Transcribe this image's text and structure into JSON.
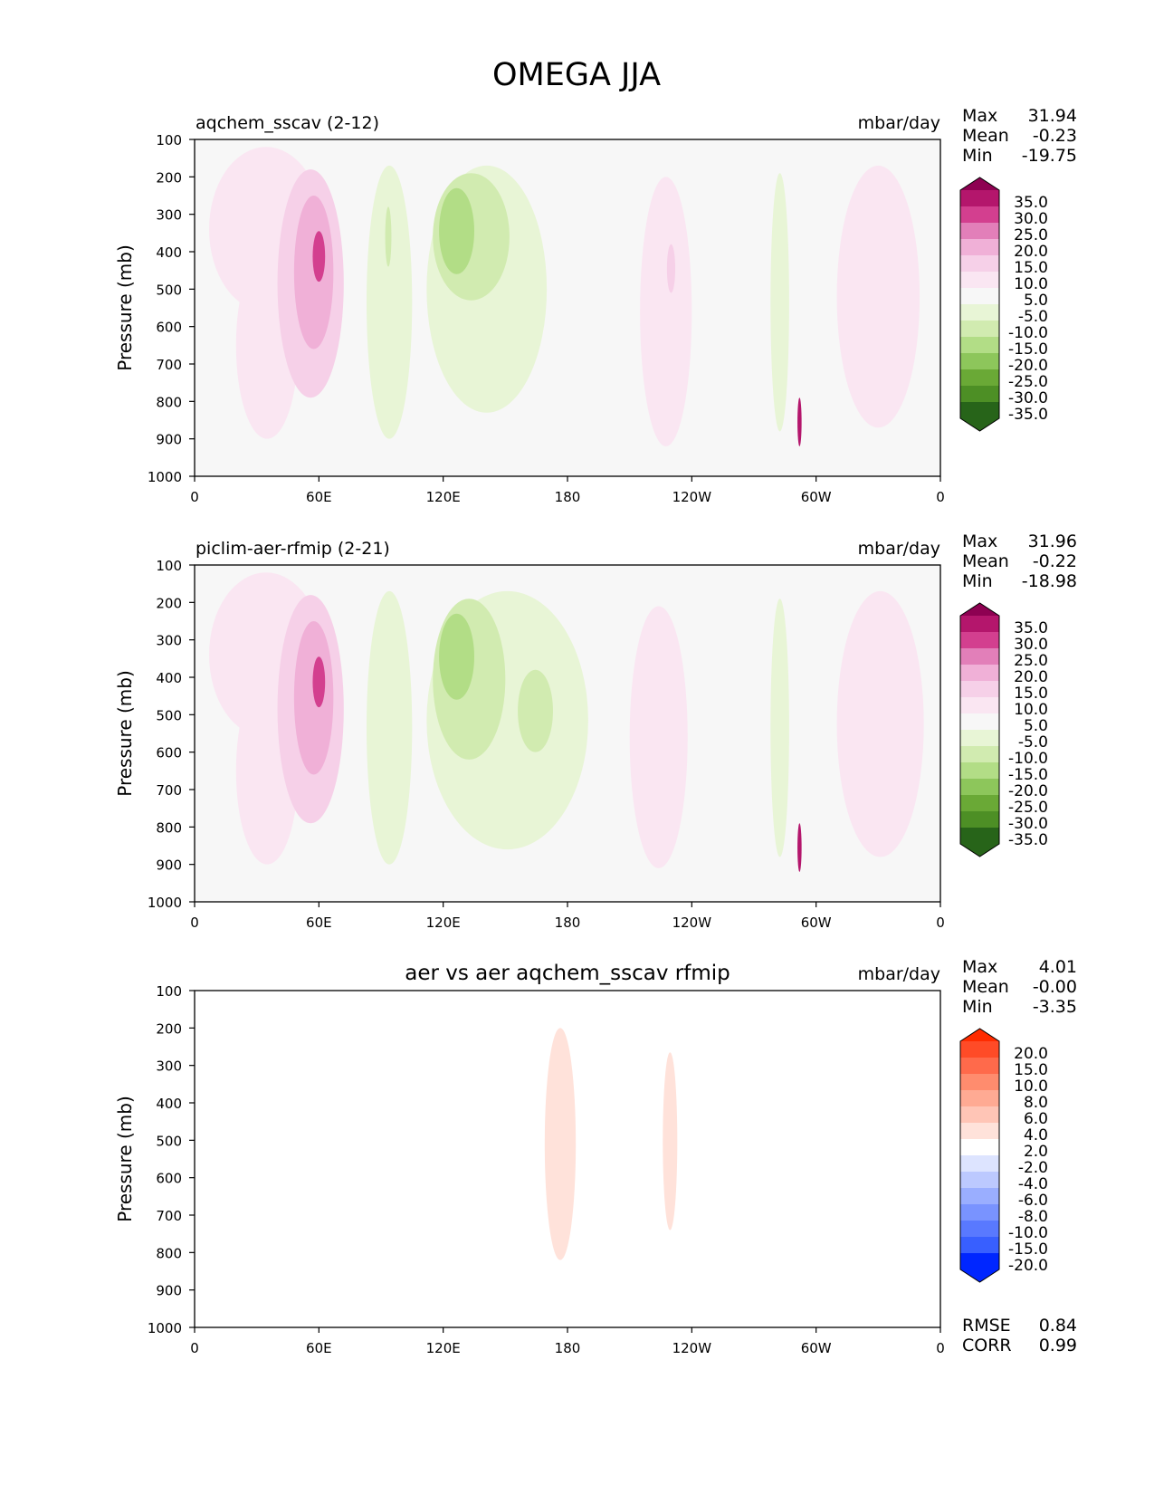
{
  "figure_title": "OMEGA JJA",
  "chart_data": [
    {
      "type": "heatmap",
      "title": "aqchem_sscav (2-12)",
      "units": "mbar/day",
      "ylabel": "Pressure (mb)",
      "xlabel": "",
      "x_ticks": [
        "0",
        "60E",
        "120E",
        "180",
        "120W",
        "60W",
        "0"
      ],
      "y_ticks": [
        "100",
        "200",
        "300",
        "400",
        "500",
        "600",
        "700",
        "800",
        "900",
        "1000"
      ],
      "xlim_deg": [
        0,
        360
      ],
      "ylim_mb": [
        100,
        1000
      ],
      "stats": [
        {
          "label": "Max",
          "value": "31.94"
        },
        {
          "label": "Mean",
          "value": "-0.23"
        },
        {
          "label": "Min",
          "value": "-19.75"
        }
      ],
      "colorbar": {
        "labels": [
          "35.0",
          "30.0",
          "25.0",
          "20.0",
          "15.0",
          "10.0",
          "5.0",
          "-5.0",
          "-10.0",
          "-15.0",
          "-20.0",
          "-25.0",
          "-30.0",
          "-35.0"
        ],
        "colors": [
          "#8e0152",
          "#b4166c",
          "#d33f8f",
          "#e27fb9",
          "#f0b0d7",
          "#f6d0e8",
          "#fae6f2",
          "#f7f7f7",
          "#e8f5d6",
          "#d1ebb0",
          "#b2dd86",
          "#8dc65b",
          "#6aa936",
          "#4d8f25",
          "#3a7a1e",
          "#276419"
        ]
      },
      "features": [
        {
          "lon": [
            7,
            62
          ],
          "p": [
            120,
            560
          ],
          "value": 7
        },
        {
          "lon": [
            20,
            50
          ],
          "p": [
            400,
            900
          ],
          "value": 6
        },
        {
          "lon": [
            40,
            72
          ],
          "p": [
            180,
            790
          ],
          "value": 14
        },
        {
          "lon": [
            48,
            67
          ],
          "p": [
            250,
            660
          ],
          "value": 19
        },
        {
          "lon": [
            57,
            63
          ],
          "p": [
            345,
            480
          ],
          "value": 26
        },
        {
          "lon": [
            83,
            105
          ],
          "p": [
            170,
            900
          ],
          "value": -8
        },
        {
          "lon": [
            92,
            95
          ],
          "p": [
            280,
            440
          ],
          "value": -12
        },
        {
          "lon": [
            112,
            170
          ],
          "p": [
            170,
            830
          ],
          "value": -8
        },
        {
          "lon": [
            115,
            152
          ],
          "p": [
            190,
            530
          ],
          "value": -14
        },
        {
          "lon": [
            118,
            135
          ],
          "p": [
            230,
            460
          ],
          "value": -18
        },
        {
          "lon": [
            215,
            240
          ],
          "p": [
            200,
            920
          ],
          "value": 7
        },
        {
          "lon": [
            228,
            232
          ],
          "p": [
            380,
            510
          ],
          "value": 13
        },
        {
          "lon": [
            278,
            287
          ],
          "p": [
            190,
            880
          ],
          "value": -8
        },
        {
          "lon": [
            291,
            293
          ],
          "p": [
            790,
            920
          ],
          "value": 30
        },
        {
          "lon": [
            310,
            350
          ],
          "p": [
            170,
            870
          ],
          "value": 6
        }
      ]
    },
    {
      "type": "heatmap",
      "title": "piclim-aer-rfmip (2-21)",
      "units": "mbar/day",
      "ylabel": "Pressure (mb)",
      "xlabel": "",
      "x_ticks": [
        "0",
        "60E",
        "120E",
        "180",
        "120W",
        "60W",
        "0"
      ],
      "y_ticks": [
        "100",
        "200",
        "300",
        "400",
        "500",
        "600",
        "700",
        "800",
        "900",
        "1000"
      ],
      "xlim_deg": [
        0,
        360
      ],
      "ylim_mb": [
        100,
        1000
      ],
      "stats": [
        {
          "label": "Max",
          "value": "31.96"
        },
        {
          "label": "Mean",
          "value": "-0.22"
        },
        {
          "label": "Min",
          "value": "-18.98"
        }
      ],
      "colorbar": {
        "labels": [
          "35.0",
          "30.0",
          "25.0",
          "20.0",
          "15.0",
          "10.0",
          "5.0",
          "-5.0",
          "-10.0",
          "-15.0",
          "-20.0",
          "-25.0",
          "-30.0",
          "-35.0"
        ],
        "colors": [
          "#8e0152",
          "#b4166c",
          "#d33f8f",
          "#e27fb9",
          "#f0b0d7",
          "#f6d0e8",
          "#fae6f2",
          "#f7f7f7",
          "#e8f5d6",
          "#d1ebb0",
          "#b2dd86",
          "#8dc65b",
          "#6aa936",
          "#4d8f25",
          "#3a7a1e",
          "#276419"
        ]
      },
      "features": [
        {
          "lon": [
            7,
            62
          ],
          "p": [
            120,
            560
          ],
          "value": 7
        },
        {
          "lon": [
            20,
            50
          ],
          "p": [
            400,
            900
          ],
          "value": 6
        },
        {
          "lon": [
            40,
            72
          ],
          "p": [
            180,
            790
          ],
          "value": 14
        },
        {
          "lon": [
            48,
            67
          ],
          "p": [
            250,
            660
          ],
          "value": 19
        },
        {
          "lon": [
            57,
            63
          ],
          "p": [
            345,
            480
          ],
          "value": 26
        },
        {
          "lon": [
            83,
            105
          ],
          "p": [
            170,
            900
          ],
          "value": -8
        },
        {
          "lon": [
            112,
            190
          ],
          "p": [
            170,
            860
          ],
          "value": -8
        },
        {
          "lon": [
            115,
            150
          ],
          "p": [
            190,
            620
          ],
          "value": -14
        },
        {
          "lon": [
            118,
            135
          ],
          "p": [
            230,
            460
          ],
          "value": -18
        },
        {
          "lon": [
            156,
            173
          ],
          "p": [
            380,
            600
          ],
          "value": -12
        },
        {
          "lon": [
            210,
            238
          ],
          "p": [
            210,
            910
          ],
          "value": 7
        },
        {
          "lon": [
            278,
            287
          ],
          "p": [
            190,
            880
          ],
          "value": -8
        },
        {
          "lon": [
            291,
            293
          ],
          "p": [
            790,
            920
          ],
          "value": 30
        },
        {
          "lon": [
            310,
            352
          ],
          "p": [
            170,
            880
          ],
          "value": 6
        }
      ]
    },
    {
      "type": "heatmap",
      "title": "aer vs aer aqchem_sscav rfmip",
      "units": "mbar/day",
      "ylabel": "Pressure (mb)",
      "xlabel": "",
      "x_ticks": [
        "0",
        "60E",
        "120E",
        "180",
        "120W",
        "60W",
        "0"
      ],
      "y_ticks": [
        "100",
        "200",
        "300",
        "400",
        "500",
        "600",
        "700",
        "800",
        "900",
        "1000"
      ],
      "xlim_deg": [
        0,
        360
      ],
      "ylim_mb": [
        100,
        1000
      ],
      "stats": [
        {
          "label": "Max",
          "value": "4.01"
        },
        {
          "label": "Mean",
          "value": "-0.00"
        },
        {
          "label": "Min",
          "value": "-3.35"
        }
      ],
      "metrics": [
        {
          "label": "RMSE",
          "value": "0.84"
        },
        {
          "label": "CORR",
          "value": "0.99"
        }
      ],
      "colorbar": {
        "labels": [
          "20.0",
          "15.0",
          "10.0",
          "8.0",
          "6.0",
          "4.0",
          "2.0",
          "-2.0",
          "-4.0",
          "-6.0",
          "-8.0",
          "-10.0",
          "-15.0",
          "-20.0"
        ],
        "colors": [
          "#ff2b00",
          "#ff4b27",
          "#ff6a4b",
          "#ff8c6e",
          "#ffaa93",
          "#ffc5b6",
          "#ffe2da",
          "#ffffff",
          "#dde4ff",
          "#bcc9ff",
          "#9aaeff",
          "#7993ff",
          "#5979ff",
          "#385fff",
          "#173fff",
          "#0026ff"
        ]
      },
      "features": [
        {
          "lon": [
            134,
            139
          ],
          "p": [
            210,
            520
          ],
          "value": -1.5
        },
        {
          "lon": [
            148,
            150
          ],
          "p": [
            440,
            910
          ],
          "value": -1.5
        },
        {
          "lon": [
            151,
            158
          ],
          "p": [
            420,
            590
          ],
          "value": -1.5
        },
        {
          "lon": [
            169,
            184
          ],
          "p": [
            200,
            820
          ],
          "value": 2.5
        },
        {
          "lon": [
            198,
            205
          ],
          "p": [
            280,
            600
          ],
          "value": -1.5
        },
        {
          "lon": [
            226,
            233
          ],
          "p": [
            265,
            740
          ],
          "value": 2.5
        },
        {
          "lon": [
            282,
            283
          ],
          "p": [
            350,
            480
          ],
          "value": -1.5
        }
      ]
    }
  ]
}
